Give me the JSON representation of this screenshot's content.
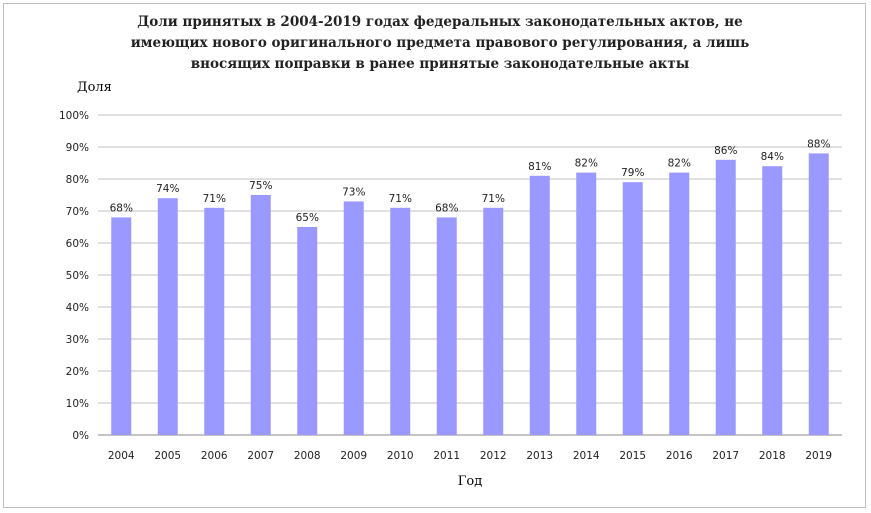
{
  "chart_data": {
    "type": "bar",
    "title": "Доли принятых в 2004-2019 годах федеральных законодательных актов, не имеющих нового оригинального предмета правового регулирования, а лишь вносящих поправки в ранее принятые законодательные акты",
    "title_lines": [
      "Доли принятых в 2004-2019 годах федеральных законодательных актов, не",
      "имеющих нового оригинального предмета правового регулирования, а лишь",
      "вносящих поправки в ранее принятые законодательные акты"
    ],
    "xlabel": "Год",
    "ylabel": "Доля",
    "categories": [
      "2004",
      "2005",
      "2006",
      "2007",
      "2008",
      "2009",
      "2010",
      "2011",
      "2012",
      "2013",
      "2014",
      "2015",
      "2016",
      "2017",
      "2018",
      "2019"
    ],
    "values": [
      68,
      74,
      71,
      75,
      65,
      73,
      71,
      68,
      71,
      81,
      82,
      79,
      82,
      86,
      84,
      88
    ],
    "data_labels": [
      "68%",
      "74%",
      "71%",
      "75%",
      "65%",
      "73%",
      "71%",
      "68%",
      "71%",
      "81%",
      "82%",
      "79%",
      "82%",
      "86%",
      "84%",
      "88%"
    ],
    "ylim": [
      0,
      100
    ],
    "yticks": [
      0,
      10,
      20,
      30,
      40,
      50,
      60,
      70,
      80,
      90,
      100
    ],
    "ytick_labels": [
      "0%",
      "10%",
      "20%",
      "30%",
      "40%",
      "50%",
      "60%",
      "70%",
      "80%",
      "90%",
      "100%"
    ],
    "grid": true,
    "legend": "none",
    "bar_color": "#9999ff",
    "grid_color": "#c0c0c0"
  }
}
